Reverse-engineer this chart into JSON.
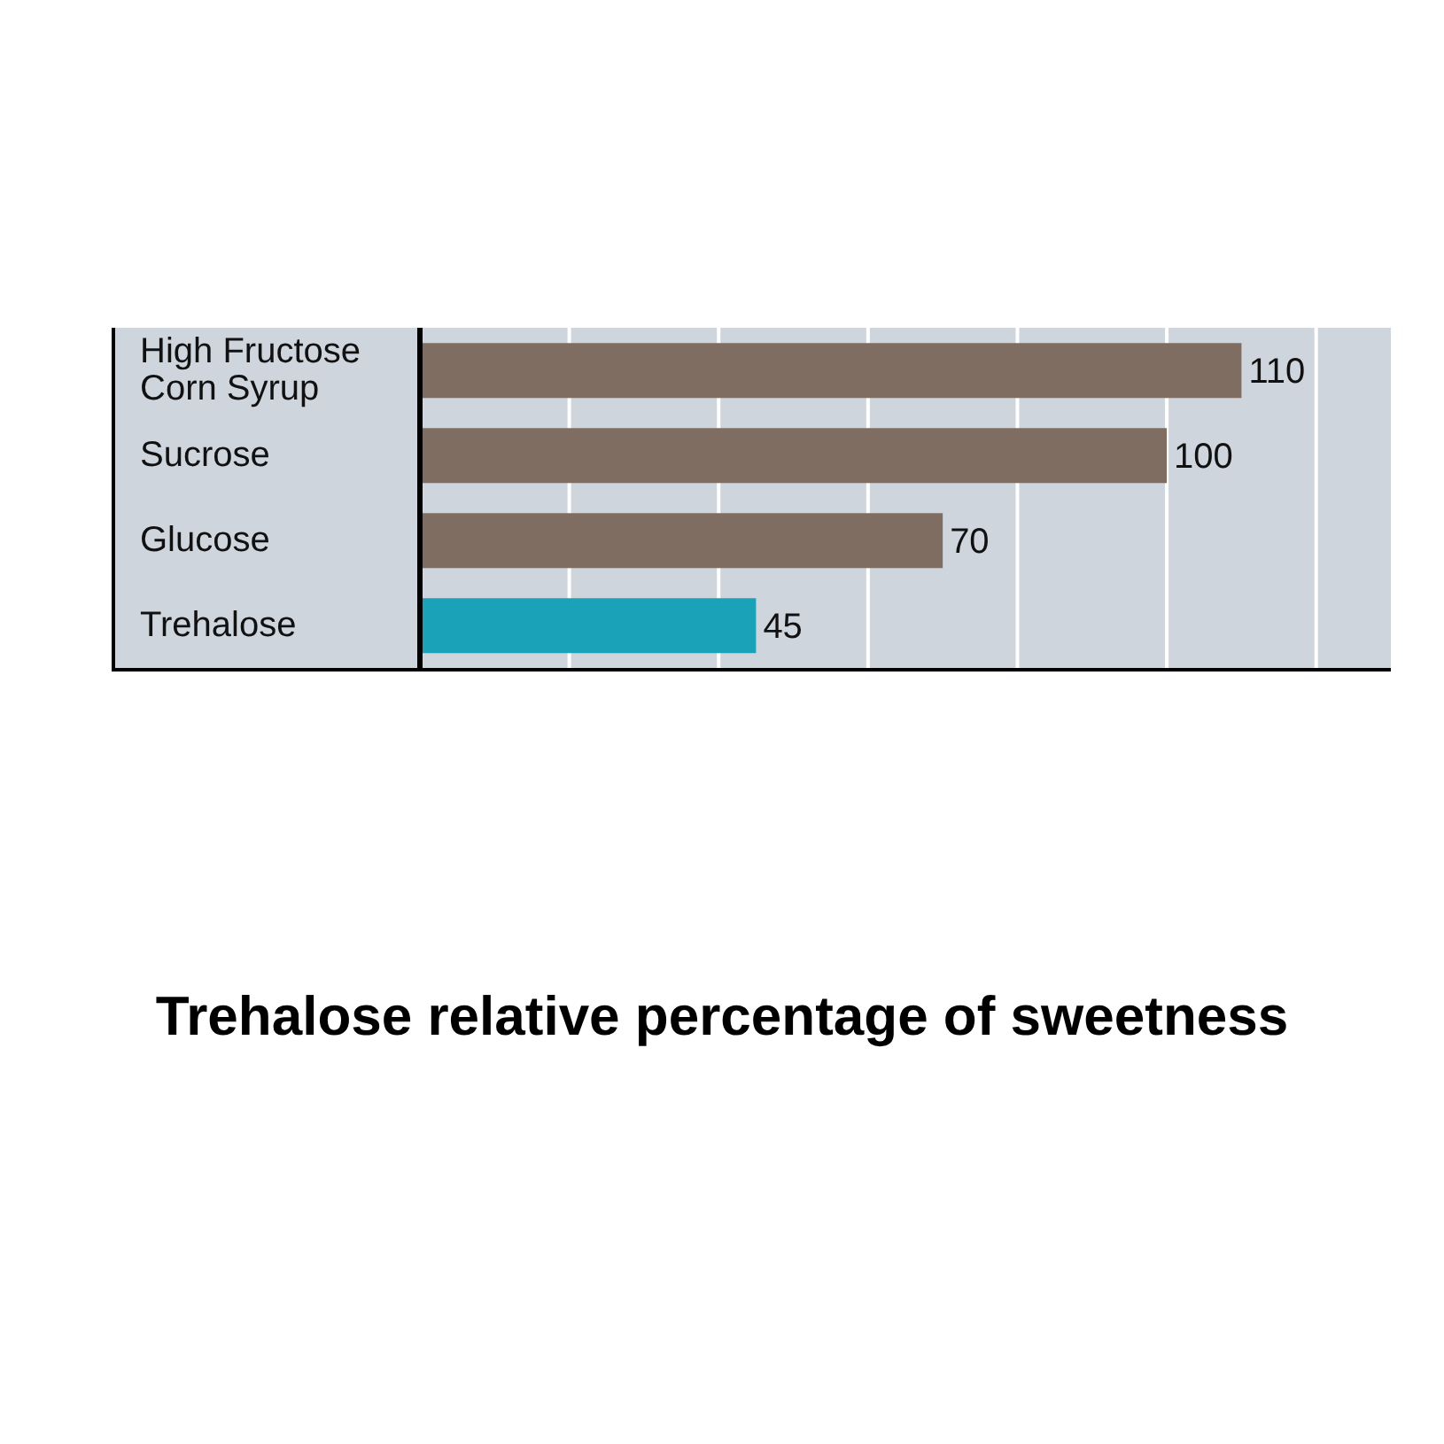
{
  "chart_data": {
    "type": "bar",
    "orientation": "horizontal",
    "title": "Trehalose  relative percentage of sweetness",
    "categories": [
      "High Fructose Corn Syrup",
      "Sucrose",
      "Glucose",
      "Trehalose"
    ],
    "values": [
      110,
      100,
      70,
      45
    ],
    "colors": [
      "#7f6d62",
      "#7f6d62",
      "#7f6d62",
      "#1aa3b8"
    ],
    "xlim": [
      0,
      130
    ],
    "xticks": [
      {
        "value": 20,
        "label": null
      },
      {
        "value": 40,
        "label": null
      },
      {
        "value": 60,
        "label": null
      },
      {
        "value": 80,
        "label": null
      },
      {
        "value": 100,
        "label": null
      },
      {
        "value": 120,
        "label": null
      }
    ],
    "grid": "x",
    "tick_labels": "y",
    "data_labels": true
  }
}
